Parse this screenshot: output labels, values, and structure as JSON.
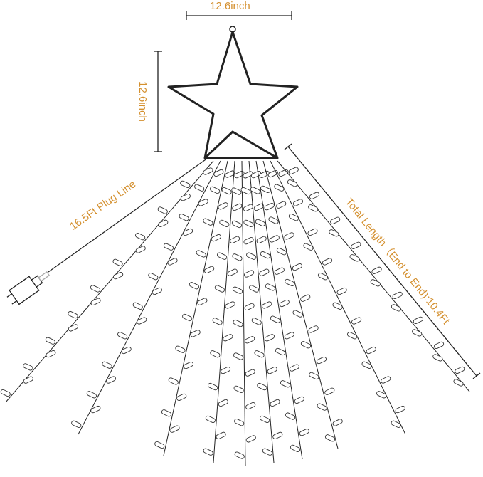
{
  "labels": {
    "star_width": "12.6inch",
    "star_height": "12.6inch",
    "plug_line": "16.5Ft Plug Line",
    "total_length": "Total Length（End to End):10.4Ft"
  },
  "colors": {
    "label": "#d4902f",
    "line": "#222222"
  }
}
